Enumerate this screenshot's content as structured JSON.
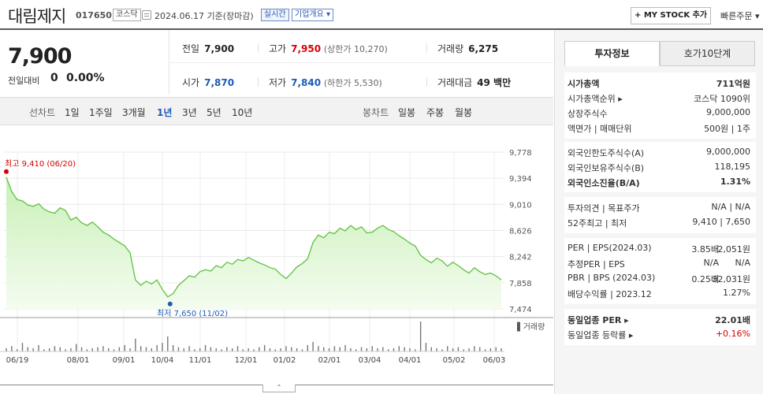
{
  "header": {
    "name": "대림제지",
    "code": "017650",
    "market": "코스닥",
    "date": "2024.06.17",
    "date_basis": "기준(장마감)",
    "realtime": "실시간",
    "overview": "기업개요 ▾",
    "mystock": "+ MY STOCK 추가",
    "fast_order": "빠른주문 ▾"
  },
  "price": {
    "current": "7,900",
    "change_label": "전일대비",
    "change": "0",
    "rate": "0.00%"
  },
  "quote": {
    "prev_label": "전일",
    "prev": "7,900",
    "high_label": "고가",
    "high": "7,950",
    "upper_limit": "(상한가 10,270)",
    "volume_label": "거래량",
    "volume": "6,275",
    "open_label": "시가",
    "open": "7,870",
    "low_label": "저가",
    "low": "7,840",
    "lower_limit": "(하한가 5,530)",
    "value_label": "거래대금",
    "value": "49 백만"
  },
  "periods": {
    "line_label": "선차트",
    "line_items": [
      "1일",
      "1주일",
      "3개월",
      "1년",
      "3년",
      "5년",
      "10년"
    ],
    "active": "1년",
    "candle_label": "봉차트",
    "candle_items": [
      "일봉",
      "주봉",
      "월봉"
    ]
  },
  "chart_data": {
    "type": "area",
    "y_ticks": [
      "9,778",
      "9,394",
      "9,010",
      "8,626",
      "8,242",
      "7,858",
      "7,474"
    ],
    "ylim": [
      7474,
      9778
    ],
    "x_ticks": [
      "06/19",
      "08/01",
      "09/01",
      "10/04",
      "11/01",
      "12/01",
      "01/02",
      "02/01",
      "03/04",
      "04/01",
      "05/02",
      "06/03"
    ],
    "high_label": "최고 9,410 (06/20)",
    "low_label": "최저 7,650 (11/02)",
    "high": 9410,
    "low": 7650,
    "volume_label": "▌거래량",
    "values": [
      9410,
      9200,
      9080,
      9060,
      9000,
      8980,
      9020,
      8940,
      8900,
      8880,
      8960,
      8920,
      8780,
      8820,
      8740,
      8700,
      8750,
      8680,
      8600,
      8560,
      8500,
      8450,
      8400,
      8300,
      7900,
      7820,
      7880,
      7840,
      7900,
      7760,
      7650,
      7700,
      7820,
      7890,
      7960,
      7940,
      8020,
      8050,
      8030,
      8110,
      8080,
      8160,
      8130,
      8200,
      8180,
      8230,
      8190,
      8150,
      8120,
      8080,
      8060,
      7980,
      7920,
      8000,
      8090,
      8140,
      8210,
      8450,
      8560,
      8520,
      8600,
      8580,
      8660,
      8620,
      8700,
      8640,
      8680,
      8590,
      8600,
      8660,
      8700,
      8640,
      8610,
      8550,
      8500,
      8440,
      8400,
      8260,
      8200,
      8150,
      8220,
      8180,
      8100,
      8160,
      8110,
      8050,
      8000,
      8080,
      8020,
      7980,
      8000,
      7960,
      7900
    ],
    "volumes": [
      3,
      5,
      2,
      8,
      4,
      3,
      6,
      2,
      3,
      5,
      4,
      2,
      3,
      7,
      4,
      2,
      3,
      4,
      5,
      3,
      2,
      4,
      6,
      3,
      12,
      5,
      4,
      3,
      6,
      8,
      14,
      6,
      4,
      3,
      5,
      2,
      3,
      6,
      4,
      3,
      2,
      4,
      3,
      5,
      2,
      3,
      2,
      4,
      6,
      3,
      2,
      3,
      5,
      4,
      3,
      2,
      6,
      9,
      5,
      4,
      3,
      5,
      4,
      6,
      3,
      2,
      4,
      3,
      5,
      3,
      4,
      2,
      3,
      5,
      4,
      3,
      2,
      28,
      8,
      4,
      3,
      2,
      5,
      3,
      4,
      2,
      3,
      5,
      4,
      2,
      3,
      4,
      3
    ]
  },
  "side": {
    "tab_active": "투자정보",
    "tab_inactive": "호가10단계",
    "rows1": [
      {
        "label": "시가총액",
        "value": "711억원",
        "bold": true
      },
      {
        "label": "시가총액순위 ▸",
        "value": "코스닥 1090위"
      },
      {
        "label": "상장주식수",
        "value": "9,000,000"
      },
      {
        "label": "액면가 | 매매단위",
        "value": "500원 | 1주"
      }
    ],
    "rows2": [
      {
        "label": "외국인한도주식수(A)",
        "value": "9,000,000"
      },
      {
        "label": "외국인보유주식수(B)",
        "value": "118,195"
      },
      {
        "label": "외국인소진율(B/A)",
        "value": "1.31%",
        "bold": true
      }
    ],
    "rows3": [
      {
        "label": "투자의견 | 목표주가",
        "value": "N/A | N/A"
      },
      {
        "label": "52주최고 | 최저",
        "value": "9,410 | 7,650"
      }
    ],
    "rows4": [
      {
        "label": "PER | EPS(2024.03)",
        "value_a": "3.85배",
        "value": "2,051원"
      },
      {
        "label": "추정PER | EPS",
        "value_a": "N/A",
        "value": "N/A"
      },
      {
        "label": "PBR | BPS (2024.03)",
        "value_a": "0.25배",
        "value": "32,031원"
      },
      {
        "label": "배당수익률 | 2023.12",
        "value_a": "",
        "value": "1.27%"
      }
    ],
    "rows5": [
      {
        "label": "동일업종 PER ▸",
        "value": "22.01배",
        "bold": true
      },
      {
        "label": "동일업종 등락률 ▸",
        "value": "+0.16%",
        "red": true
      }
    ]
  }
}
